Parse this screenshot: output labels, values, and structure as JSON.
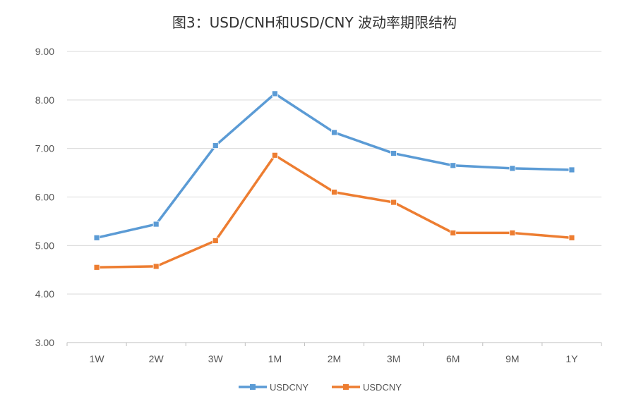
{
  "chart_data": {
    "type": "line",
    "title": "图3：USD/CNH和USD/CNY 波动率期限结构",
    "xlabel": "",
    "ylabel": "",
    "categories": [
      "1W",
      "2W",
      "3W",
      "1M",
      "2M",
      "3M",
      "6M",
      "9M",
      "1Y"
    ],
    "ylim": [
      3.0,
      9.0
    ],
    "yticks": [
      "3.00",
      "4.00",
      "5.00",
      "6.00",
      "7.00",
      "8.00",
      "9.00"
    ],
    "grid": true,
    "legend": "bottom",
    "series": [
      {
        "name": "USDCNY",
        "color": "#5B9BD5",
        "values": [
          5.16,
          5.44,
          7.06,
          8.13,
          7.33,
          6.9,
          6.65,
          6.59,
          6.56
        ]
      },
      {
        "name": "USDCNY",
        "color": "#ED7D31",
        "values": [
          4.55,
          4.57,
          5.1,
          6.86,
          6.1,
          5.89,
          5.26,
          5.26,
          5.16
        ]
      }
    ]
  }
}
